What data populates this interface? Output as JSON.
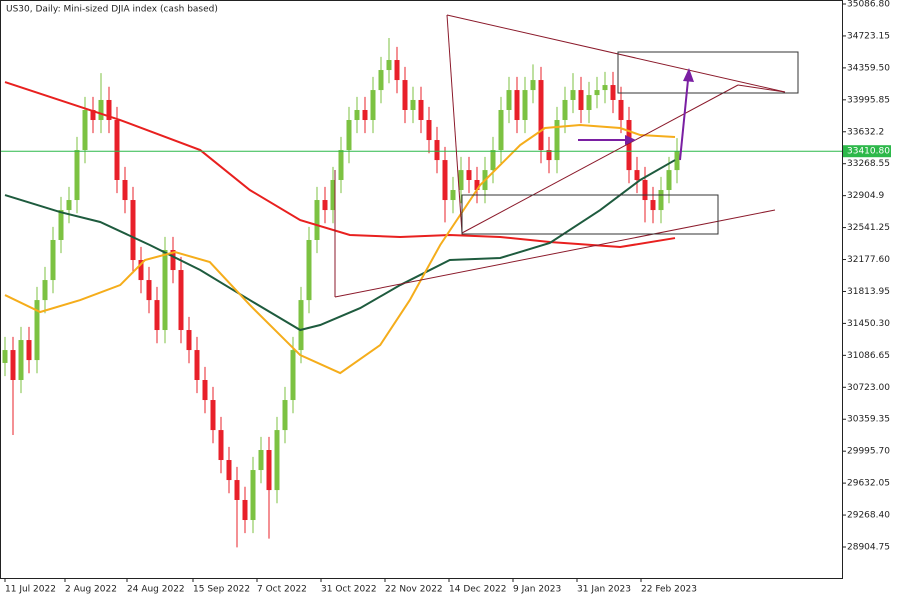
{
  "chart_data": {
    "type": "candlestick",
    "title": "US30, Daily:  Mini-sized DJIA index (cash based)",
    "xlim": [
      -0.625,
      104.625
    ],
    "ylim": [
      28551.8,
      35132.3
    ],
    "xticks": [
      {
        "value": 0,
        "label": "11 Jul 2022"
      },
      {
        "value": 7.5,
        "label": "2 Aug 2022"
      },
      {
        "value": 15.25,
        "label": "24 Aug 2022"
      },
      {
        "value": 23.5,
        "label": "15 Sep 2022"
      },
      {
        "value": 31.5,
        "label": "7 Oct 2022"
      },
      {
        "value": 39.5,
        "label": "31 Oct 2022"
      },
      {
        "value": 47.5,
        "label": "22 Nov 2022"
      },
      {
        "value": 55.5,
        "label": "14 Dec 2022"
      },
      {
        "value": 63.5,
        "label": "9 Jan 2023"
      },
      {
        "value": 71.5,
        "label": "31 Jan 2023"
      },
      {
        "value": 79.5,
        "label": "22 Feb 2023"
      }
    ],
    "yticks": [
      {
        "value": 35086.8,
        "label": "35086.80"
      },
      34723.15,
      {
        "value": 34359.5,
        "label": "34359.50"
      },
      33995.85,
      33632.2,
      33268.55,
      32904.9,
      32541.25,
      {
        "value": 32177.6,
        "label": "32177.60"
      },
      31813.95,
      {
        "value": 31450.3,
        "label": "31450.30"
      },
      31086.65,
      {
        "value": 30723,
        "label": "30723.00"
      },
      30359.35,
      {
        "value": 29995.7,
        "label": "29995.70"
      },
      29632.05,
      {
        "value": 29268.4,
        "label": "29268.40"
      },
      28904.75
    ],
    "up_color": "#7cc242",
    "down_color": "#e8202a",
    "open": [
      31000,
      31147,
      30806,
      31261,
      31033,
      31716,
      31944,
      32400,
      32741,
      32855,
      33424,
      33880,
      33766,
      33994,
      33766,
      33083,
      32855,
      32172,
      31944,
      31716,
      31375,
      32286,
      32058,
      31375,
      31147,
      30806,
      30578,
      30236,
      29895,
      29667,
      29440,
      29212,
      29781,
      30009,
      29553,
      30236,
      30578,
      31147,
      31716,
      32400,
      32855,
      32741,
      33083,
      33424,
      33766,
      33880,
      33766,
      34107,
      34335,
      34449,
      34221,
      33880,
      33994,
      33766,
      33538,
      33310,
      32855,
      32969,
      33196,
      33083,
      32969,
      33196,
      33424,
      33880,
      34107,
      33766,
      34107,
      34221,
      33424,
      33310,
      33766,
      33994,
      34107,
      33880,
      34050,
      34107,
      34164,
      33994,
      33766,
      33196,
      33083,
      32855,
      32741,
      32969,
      33196
    ],
    "high": [
      31297,
      31297,
      31411,
      31411,
      31866,
      32094,
      32550,
      32891,
      33005,
      33574,
      34030,
      34030,
      34300,
      34144,
      33916,
      33233,
      33005,
      32322,
      32094,
      31866,
      32436,
      32436,
      32208,
      31525,
      31297,
      30956,
      30728,
      30386,
      30045,
      29817,
      29590,
      29931,
      30159,
      30159,
      30386,
      30728,
      31297,
      31866,
      32550,
      33005,
      33005,
      33233,
      33574,
      33916,
      34030,
      34030,
      34257,
      34485,
      34700,
      34599,
      34371,
      34144,
      34144,
      33916,
      33688,
      33460,
      33119,
      33346,
      33346,
      33233,
      33346,
      33574,
      34030,
      34257,
      34257,
      34257,
      34400,
      34371,
      33574,
      33916,
      34144,
      34300,
      34257,
      34200,
      34257,
      34314,
      34314,
      34144,
      33916,
      33346,
      33233,
      33005,
      33119,
      33346,
      33560
    ],
    "low": [
      30850,
      30180,
      30656,
      30883,
      30883,
      31566,
      31794,
      32250,
      32591,
      32705,
      33274,
      33616,
      33616,
      33616,
      32933,
      32705,
      32022,
      31794,
      31566,
      31225,
      31225,
      31908,
      31225,
      30997,
      30656,
      30428,
      30086,
      29745,
      29517,
      28900,
      29062,
      29062,
      29631,
      29000,
      29403,
      30086,
      30428,
      30997,
      31566,
      32250,
      32591,
      32591,
      32933,
      33274,
      33616,
      33616,
      33616,
      33957,
      34185,
      34071,
      33730,
      33730,
      33616,
      33388,
      33160,
      32600,
      32705,
      32819,
      32933,
      32819,
      32819,
      33046,
      33274,
      33730,
      33616,
      33616,
      33957,
      33274,
      33160,
      33160,
      33616,
      33844,
      33730,
      33730,
      33900,
      33957,
      33844,
      33616,
      33046,
      32933,
      32600,
      32591,
      32591,
      32819,
      33046
    ],
    "close": [
      31147,
      30806,
      31261,
      31033,
      31716,
      31944,
      32400,
      32741,
      32855,
      33424,
      33880,
      33766,
      33994,
      33766,
      33083,
      32855,
      32172,
      31944,
      31716,
      31375,
      32286,
      32058,
      31375,
      31147,
      30806,
      30578,
      30236,
      29895,
      29667,
      29440,
      29212,
      29781,
      30009,
      29553,
      30236,
      30578,
      31147,
      31716,
      32400,
      32855,
      32741,
      33083,
      33424,
      33766,
      33880,
      33766,
      34107,
      34335,
      34449,
      34221,
      33880,
      33994,
      33766,
      33538,
      33310,
      32855,
      32969,
      33196,
      33083,
      32969,
      33196,
      33424,
      33880,
      34107,
      33766,
      34107,
      34221,
      33424,
      33310,
      33766,
      33994,
      34107,
      33880,
      34050,
      34107,
      34164,
      33994,
      33766,
      33196,
      33083,
      32855,
      32741,
      32969,
      33196,
      33410.8
    ],
    "series": [
      {
        "color": "#e8201f",
        "x": [
          0,
          14.4,
          24.4,
          30.6,
          36.9,
          43.1,
          49.4,
          55.6,
          61.9,
          68.1,
          76.9,
          83.75
        ],
        "values": [
          34198,
          33766,
          33424,
          32969,
          32627,
          32457,
          32434,
          32457,
          32434,
          32377,
          32320,
          32422
        ]
      },
      {
        "color": "#1e5b3e",
        "x": [
          0,
          6.9,
          11.9,
          18.1,
          24.4,
          30.6,
          36.9,
          39.4,
          44.4,
          49.4,
          55.6,
          61.9,
          68.1,
          74.4,
          79.4,
          83.75
        ],
        "values": [
          32912,
          32718,
          32605,
          32343,
          32058,
          31716,
          31375,
          31432,
          31625,
          31887,
          32172,
          32195,
          32366,
          32741,
          33083,
          33310
        ]
      },
      {
        "color": "#f5ad1b",
        "x": [
          0,
          4.4,
          9.4,
          14.4,
          17.5,
          21.25,
          25.6,
          30.6,
          36.9,
          41.9,
          46.9,
          50.6,
          54.4,
          59.4,
          64.4,
          67.5,
          71.9,
          76.9,
          79.4,
          83.75
        ],
        "values": [
          31773,
          31580,
          31716,
          31887,
          32172,
          32263,
          32149,
          31660,
          31090,
          30885,
          31204,
          31716,
          32343,
          33026,
          33481,
          33675,
          33709,
          33675,
          33595,
          33572
        ]
      }
    ],
    "last_price": {
      "value": 33410.8,
      "label": "33410.80"
    },
    "last_price_color": "#2db84a"
  }
}
